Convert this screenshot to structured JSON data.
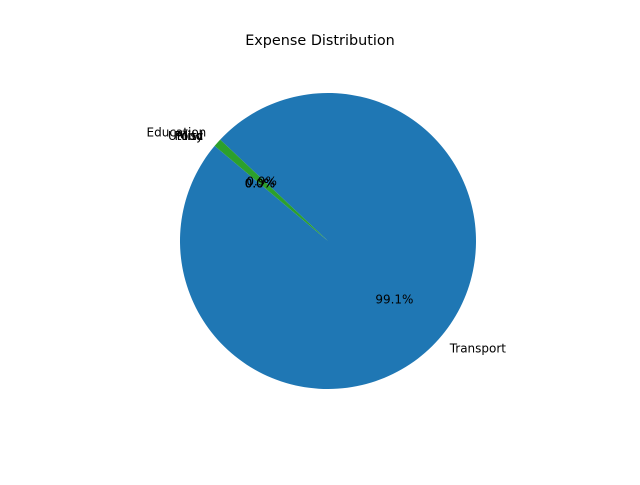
{
  "chart_data": {
    "type": "pie",
    "title": "Expense Distribution",
    "slices": [
      {
        "label": "Transport",
        "value": 99.1,
        "pct_label": "99.1%",
        "color": "#1f77b4"
      },
      {
        "label": "Education",
        "value": 0.9,
        "pct_label": "0.9%",
        "color": "#2ca02c"
      },
      {
        "label": "Food",
        "value": 0.0,
        "pct_label": "0.0%",
        "color": "#ff7f0e"
      },
      {
        "label": "Misc",
        "value": 0.0,
        "pct_label": "0.0%",
        "color": "#d62728"
      },
      {
        "label": "Utility",
        "value": 0.0,
        "pct_label": "0.0%",
        "color": "#9467bd"
      }
    ],
    "start_angle_deg": 140,
    "counterclockwise": true,
    "legend": "none"
  }
}
